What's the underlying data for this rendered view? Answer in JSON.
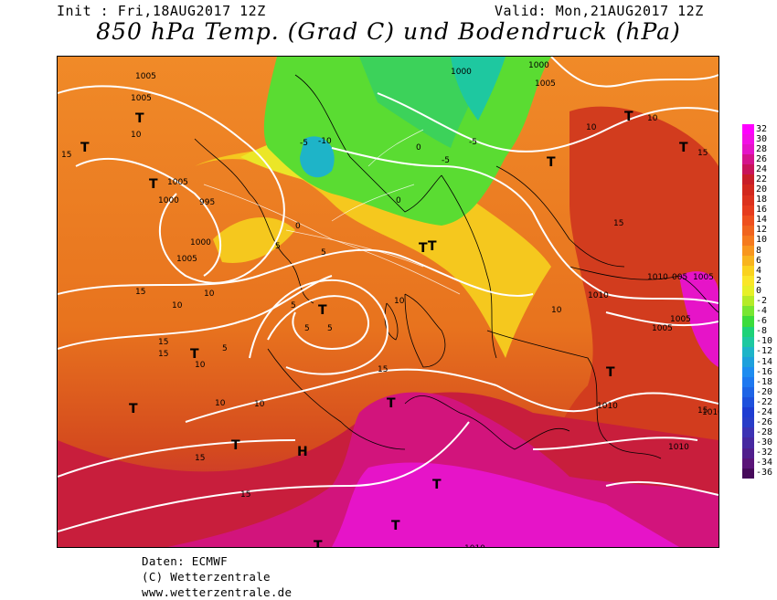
{
  "header": {
    "init": "Init : Fri,18AUG2017 12Z",
    "valid": "Valid: Mon,21AUG2017 12Z",
    "title": "850 hPa Temp. (Grad C) und Bodendruck (hPa)"
  },
  "credits": {
    "line1": "Daten: ECMWF",
    "line2": "(C) Wetterzentrale",
    "line3": "www.wetterzentrale.de"
  },
  "scale": {
    "labels": [
      "32",
      "30",
      "28",
      "26",
      "24",
      "22",
      "20",
      "18",
      "16",
      "14",
      "12",
      "10",
      "8",
      "6",
      "4",
      "2",
      "0",
      "-2",
      "-4",
      "-6",
      "-8",
      "-10",
      "-12",
      "-14",
      "-16",
      "-18",
      "-20",
      "-22",
      "-24",
      "-26",
      "-28",
      "-30",
      "-32",
      "-34",
      "-36"
    ],
    "colors": [
      "#ff00ff",
      "#f20fe6",
      "#e414c8",
      "#d4148c",
      "#c8145a",
      "#c81e28",
      "#d2281e",
      "#dc321e",
      "#e63c1e",
      "#ee501e",
      "#f0641e",
      "#f57a1e",
      "#f8961e",
      "#f8b41e",
      "#fad21e",
      "#fae628",
      "#e6f028",
      "#b4eb28",
      "#78e632",
      "#3cdc3c",
      "#1ed278",
      "#1ec8a0",
      "#1eb4c8",
      "#1ea0dc",
      "#1e8cf0",
      "#1e78f0",
      "#1e64e6",
      "#1e50dc",
      "#1e3cd2",
      "#283cc8",
      "#3c32b4",
      "#4628a0",
      "#501e8c",
      "#5a1478",
      "#460a5a"
    ]
  },
  "map": {
    "pressure_labels": [
      "1005",
      "1005",
      "1000",
      "995",
      "1000",
      "1005",
      "1000",
      "1005",
      "1000",
      "1005",
      "1010",
      "1005",
      "1005",
      "1005",
      "1005",
      "1010",
      "1010",
      "1010",
      "1010",
      "1010",
      "1010"
    ],
    "temp_labels": [
      "15",
      "10",
      "15",
      "10",
      "5",
      "0",
      "-5",
      "-10",
      "-5",
      "0",
      "5",
      "10",
      "15",
      "10",
      "5",
      "5",
      "5",
      "5",
      "10",
      "15",
      "10",
      "15",
      "10",
      "15",
      "15",
      "10",
      "10",
      "15",
      "15",
      "15",
      "10",
      "-5",
      "0"
    ],
    "high_symbol": "H",
    "low_symbol": "T"
  }
}
